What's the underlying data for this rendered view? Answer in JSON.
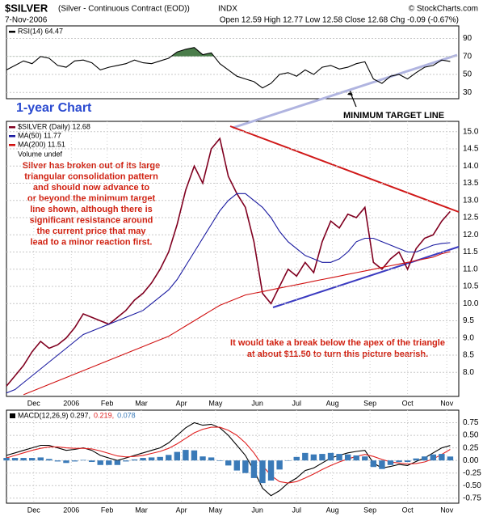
{
  "header": {
    "symbol": "$SILVER",
    "name": "(Silver - Continuous Contract (EOD))",
    "exchange": "INDX",
    "date": "7-Nov-2006",
    "quote": "Open 12.59 High 12.77 Low 12.58 Close 12.68 Chg -0.09 (-0.67%)",
    "source": "© StockCharts.com"
  },
  "chart_data": [
    {
      "type": "line",
      "legend": "upper left",
      "xlim": [
        0,
        53
      ],
      "ylim": [
        23,
        104
      ],
      "yticks": [
        90,
        70,
        50,
        30
      ],
      "overbought": 70,
      "fill_color": "#4a7d4a",
      "x": [
        0,
        1,
        2,
        3,
        4,
        5,
        6,
        7,
        8,
        9,
        10,
        11,
        12,
        13,
        14,
        15,
        16,
        17,
        18,
        19,
        20,
        21,
        22,
        23,
        24,
        25,
        26,
        27,
        28,
        29,
        30,
        31,
        32,
        33,
        34,
        35,
        36,
        37,
        38,
        39,
        40,
        41,
        42,
        43,
        44,
        45,
        46,
        47,
        48,
        49,
        50,
        51,
        52
      ],
      "series": [
        {
          "name": "RSI(14) 64.47",
          "color": "#000000",
          "values": [
            55,
            60,
            65,
            62,
            70,
            68,
            60,
            58,
            65,
            66,
            63,
            55,
            58,
            60,
            62,
            66,
            63,
            62,
            65,
            68,
            75,
            78,
            80,
            72,
            74,
            62,
            55,
            48,
            45,
            42,
            35,
            40,
            50,
            52,
            48,
            55,
            50,
            58,
            60,
            56,
            58,
            62,
            64,
            45,
            40,
            48,
            50,
            45,
            52,
            58,
            60,
            66,
            64.47
          ]
        }
      ]
    },
    {
      "type": "line",
      "legend": "upper left",
      "xlim": [
        0,
        53
      ],
      "ylim": [
        7.3,
        15.3
      ],
      "yticks": [
        {
          "value": 8,
          "label": "8.0"
        },
        8.5,
        {
          "value": 9,
          "label": "9.0"
        },
        9.5,
        {
          "value": 10,
          "label": "10.0"
        },
        10.5,
        {
          "value": 11,
          "label": "11.0"
        },
        11.5,
        {
          "value": 12,
          "label": "12.0"
        },
        12.5,
        {
          "value": 13,
          "label": "13.0"
        },
        13.5,
        {
          "value": 14,
          "label": "14.0"
        },
        14.5,
        {
          "value": 15,
          "label": "15.0"
        }
      ],
      "xticks": [
        {
          "value": 3.2,
          "label": "Dec"
        },
        {
          "value": 7.6,
          "label": "2006"
        },
        {
          "value": 11.8,
          "label": "Feb"
        },
        {
          "value": 15.8,
          "label": "Mar"
        },
        {
          "value": 20.5,
          "label": "Apr"
        },
        {
          "value": 24.5,
          "label": "May"
        },
        {
          "value": 29.4,
          "label": "Jun"
        },
        {
          "value": 34,
          "label": "Jul"
        },
        {
          "value": 38.2,
          "label": "Aug"
        },
        {
          "value": 42.6,
          "label": "Sep"
        },
        {
          "value": 47,
          "label": "Oct"
        },
        {
          "value": 51.6,
          "label": "Nov"
        }
      ],
      "x": [
        0,
        1,
        2,
        3,
        4,
        5,
        6,
        7,
        8,
        9,
        10,
        11,
        12,
        13,
        14,
        15,
        16,
        17,
        18,
        19,
        20,
        21,
        22,
        23,
        24,
        25,
        26,
        27,
        28,
        29,
        30,
        31,
        32,
        33,
        34,
        35,
        36,
        37,
        38,
        39,
        40,
        41,
        42,
        43,
        44,
        45,
        46,
        47,
        48,
        49,
        50,
        51,
        52
      ],
      "series": [
        {
          "name": "$SILVER (Daily) 12.68",
          "color": "#800020",
          "values": [
            7.6,
            7.9,
            8.2,
            8.6,
            8.9,
            8.7,
            8.8,
            9.0,
            9.3,
            9.7,
            9.6,
            9.5,
            9.4,
            9.6,
            9.8,
            10.1,
            10.3,
            10.6,
            11.0,
            11.5,
            12.3,
            13.3,
            14.0,
            13.5,
            14.5,
            14.8,
            13.7,
            13.2,
            12.8,
            11.8,
            10.3,
            10.0,
            10.5,
            11.0,
            10.8,
            11.2,
            10.9,
            11.8,
            12.4,
            12.2,
            12.6,
            12.5,
            12.8,
            11.2,
            11.0,
            11.3,
            11.5,
            11.0,
            11.6,
            11.9,
            12.0,
            12.4,
            12.68
          ]
        },
        {
          "name": "MA(50) 11.77",
          "color": "#1a1aa0",
          "values": [
            7.4,
            7.5,
            7.7,
            7.9,
            8.1,
            8.3,
            8.5,
            8.7,
            8.9,
            9.1,
            9.2,
            9.3,
            9.4,
            9.5,
            9.6,
            9.7,
            9.8,
            10.0,
            10.2,
            10.4,
            10.7,
            11.1,
            11.5,
            11.9,
            12.3,
            12.7,
            13.0,
            13.2,
            13.2,
            13.0,
            12.8,
            12.5,
            12.1,
            11.8,
            11.6,
            11.4,
            11.3,
            11.2,
            11.2,
            11.3,
            11.5,
            11.8,
            11.9,
            11.9,
            11.8,
            11.7,
            11.6,
            11.5,
            11.5,
            11.6,
            11.7,
            11.75,
            11.77
          ]
        },
        {
          "name": "MA(200) 11.51",
          "color": "#d01010",
          "values": [
            null,
            null,
            7.35,
            7.45,
            7.55,
            7.65,
            7.75,
            7.85,
            7.95,
            8.05,
            8.15,
            8.25,
            8.35,
            8.45,
            8.55,
            8.65,
            8.75,
            8.85,
            8.95,
            9.05,
            9.2,
            9.35,
            9.5,
            9.65,
            9.8,
            9.95,
            10.05,
            10.15,
            10.25,
            10.3,
            10.35,
            10.4,
            10.45,
            10.5,
            10.55,
            10.6,
            10.65,
            10.7,
            10.75,
            10.8,
            10.85,
            10.9,
            10.95,
            11.0,
            11.05,
            11.1,
            11.15,
            11.2,
            11.25,
            11.3,
            11.35,
            11.45,
            11.51
          ]
        }
      ],
      "annotations": {
        "chart_label": "1-year Chart",
        "target": "MINIMUM TARGET LINE",
        "volume": "Volume undef",
        "comment": [
          "Silver has broken out of its large",
          "triangular consolidation pattern",
          "and should now advance to",
          "or beyond the minimum target",
          "line shown, although there is",
          "significant resistance around",
          "the current price that may",
          "lead to a minor reaction first."
        ],
        "apex": [
          "It would take a break below the apex of the triangle",
          "at about $11.50 to turn this picture bearish."
        ]
      }
    },
    {
      "type": "line",
      "legend": "inline",
      "xlim": [
        0,
        53
      ],
      "ylim": [
        -0.85,
        1.0
      ],
      "yticks": [
        0.75,
        {
          "value": 0.5,
          "label": "0.50"
        },
        0.25,
        {
          "value": 0,
          "label": "0.00"
        },
        -0.25,
        {
          "value": -0.5,
          "label": "-0.50"
        },
        -0.75
      ],
      "xticks": [
        {
          "value": 3.2,
          "label": "Dec"
        },
        {
          "value": 7.6,
          "label": "2006"
        },
        {
          "value": 11.8,
          "label": "Feb"
        },
        {
          "value": 15.8,
          "label": "Mar"
        },
        {
          "value": 20.5,
          "label": "Apr"
        },
        {
          "value": 24.5,
          "label": "May"
        },
        {
          "value": 29.4,
          "label": "Jun"
        },
        {
          "value": 34,
          "label": "Jul"
        },
        {
          "value": 38.2,
          "label": "Aug"
        },
        {
          "value": 42.6,
          "label": "Sep"
        },
        {
          "value": 47,
          "label": "Oct"
        },
        {
          "value": 51.6,
          "label": "Nov"
        }
      ],
      "x": [
        0,
        1,
        2,
        3,
        4,
        5,
        6,
        7,
        8,
        9,
        10,
        11,
        12,
        13,
        14,
        15,
        16,
        17,
        18,
        19,
        20,
        21,
        22,
        23,
        24,
        25,
        26,
        27,
        28,
        29,
        30,
        31,
        32,
        33,
        34,
        35,
        36,
        37,
        38,
        39,
        40,
        41,
        42,
        43,
        44,
        45,
        46,
        47,
        48,
        49,
        50,
        51,
        52
      ],
      "series": [
        {
          "name": "MACD(12,26,9) 0.297,",
          "color": "#000000",
          "values": [
            0.1,
            0.15,
            0.2,
            0.25,
            0.3,
            0.3,
            0.25,
            0.2,
            0.22,
            0.25,
            0.2,
            0.1,
            0.05,
            0.0,
            0.05,
            0.1,
            0.15,
            0.2,
            0.25,
            0.35,
            0.5,
            0.65,
            0.75,
            0.7,
            0.72,
            0.65,
            0.5,
            0.3,
            0.1,
            -0.2,
            -0.55,
            -0.7,
            -0.6,
            -0.45,
            -0.35,
            -0.2,
            -0.15,
            -0.05,
            0.05,
            0.1,
            0.15,
            0.18,
            0.2,
            -0.05,
            -0.15,
            -0.12,
            -0.08,
            -0.1,
            -0.02,
            0.05,
            0.15,
            0.25,
            0.297
          ]
        },
        {
          "name": "0.219,",
          "color": "#e02020",
          "values": [
            0.05,
            0.1,
            0.15,
            0.2,
            0.24,
            0.27,
            0.27,
            0.25,
            0.24,
            0.24,
            0.23,
            0.19,
            0.14,
            0.09,
            0.07,
            0.08,
            0.1,
            0.14,
            0.18,
            0.24,
            0.33,
            0.44,
            0.55,
            0.62,
            0.66,
            0.66,
            0.6,
            0.5,
            0.35,
            0.15,
            -0.1,
            -0.3,
            -0.42,
            -0.45,
            -0.42,
            -0.35,
            -0.27,
            -0.18,
            -0.1,
            -0.03,
            0.03,
            0.08,
            0.12,
            0.08,
            0.02,
            -0.03,
            -0.05,
            -0.07,
            -0.06,
            -0.03,
            0.03,
            0.12,
            0.219
          ]
        },
        {
          "name": "0.078",
          "color": "#3a7ab8",
          "type": "bar",
          "values": [
            0.05,
            0.05,
            0.05,
            0.05,
            0.06,
            0.03,
            -0.02,
            -0.05,
            -0.02,
            0.01,
            -0.03,
            -0.09,
            -0.09,
            -0.09,
            -0.02,
            0.02,
            0.05,
            0.06,
            0.07,
            0.11,
            0.17,
            0.21,
            0.2,
            0.08,
            0.06,
            -0.01,
            -0.1,
            -0.2,
            -0.25,
            -0.35,
            -0.45,
            -0.4,
            -0.18,
            0,
            0.07,
            0.15,
            0.12,
            0.13,
            0.15,
            0.13,
            0.12,
            0.1,
            0.08,
            -0.13,
            -0.17,
            -0.09,
            -0.03,
            -0.03,
            0.04,
            0.08,
            0.12,
            0.13,
            0.078
          ]
        }
      ]
    }
  ]
}
